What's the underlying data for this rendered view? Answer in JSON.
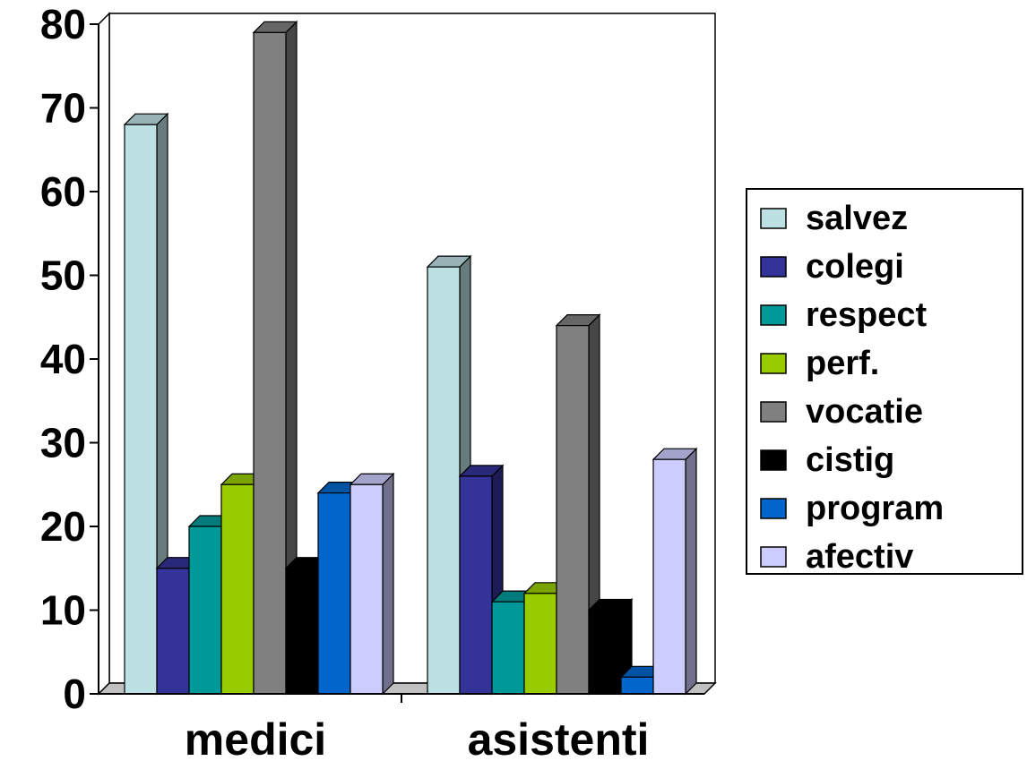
{
  "chart_data": {
    "type": "bar",
    "title": "",
    "xlabel": "",
    "ylabel": "",
    "categories": [
      "medici",
      "asistenti"
    ],
    "ylim": [
      0,
      80
    ],
    "yticks": [
      "0",
      "10",
      "20",
      "30",
      "40",
      "50",
      "60",
      "70",
      "80"
    ],
    "grid": true,
    "legend_position": "right",
    "series": [
      {
        "name": "salvez",
        "color": "#bde0e3",
        "values": [
          68,
          51
        ]
      },
      {
        "name": "colegi",
        "color": "#333399",
        "values": [
          15,
          26
        ]
      },
      {
        "name": "respect",
        "color": "#009999",
        "values": [
          20,
          11
        ]
      },
      {
        "name": "perf.",
        "color": "#99cc00",
        "values": [
          25,
          12
        ]
      },
      {
        "name": "vocatie",
        "color": "#808080",
        "values": [
          79,
          44
        ]
      },
      {
        "name": "cistig",
        "color": "#000000",
        "values": [
          15,
          10
        ]
      },
      {
        "name": "program",
        "color": "#0066cc",
        "values": [
          24,
          2
        ]
      },
      {
        "name": "afectiv",
        "color": "#ccccff",
        "values": [
          25,
          28
        ]
      }
    ]
  }
}
